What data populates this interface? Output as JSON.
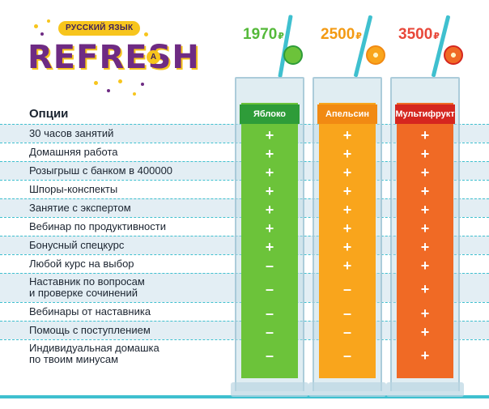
{
  "brand": {
    "badge": "РУССКИЙ ЯЗЫК",
    "logo": "REFRESH",
    "corner_letter": "А",
    "colors": {
      "purple": "#6e2b83",
      "yellow": "#f7c51d"
    }
  },
  "options_title": "Опции",
  "options": [
    "30 часов занятий",
    "Домашняя работа",
    "Розыгрыш с банком в 400000",
    "Шпоры-конспекты",
    "Занятие с экспертом",
    "Вебинар по продуктивности",
    "Бонусный спецкурс",
    "Любой курс на выбор",
    "Наставник по вопросам\nи проверке сочинений",
    "Вебинары от наставника",
    "Помощь с поступлением",
    "Индивидуальная домашка\nпо твоим минусам"
  ],
  "tiers": [
    {
      "name": "Яблоко",
      "price": "1970",
      "currency": "₽",
      "fruit_icon": "apple-icon",
      "price_color": "#55b93a",
      "header_color": "#2e9c39",
      "juice_color": "#6cc33a",
      "marks": [
        "+",
        "+",
        "+",
        "+",
        "+",
        "+",
        "+",
        "–",
        "–",
        "–",
        "–",
        "–"
      ]
    },
    {
      "name": "Апельсин",
      "price": "2500",
      "currency": "₽",
      "fruit_icon": "orange-icon",
      "price_color": "#f39a13",
      "header_color": "#f18a13",
      "juice_color": "#f9a51c",
      "marks": [
        "+",
        "+",
        "+",
        "+",
        "+",
        "+",
        "+",
        "+",
        "–",
        "–",
        "–",
        "–"
      ]
    },
    {
      "name": "Мультифрукт",
      "price": "3500",
      "currency": "₽",
      "fruit_icon": "grapefruit-icon",
      "price_color": "#e8483a",
      "header_color": "#d5261f",
      "juice_color": "#f06a25",
      "marks": [
        "+",
        "+",
        "+",
        "+",
        "+",
        "+",
        "+",
        "+",
        "+",
        "+",
        "+",
        "+"
      ]
    }
  ]
}
